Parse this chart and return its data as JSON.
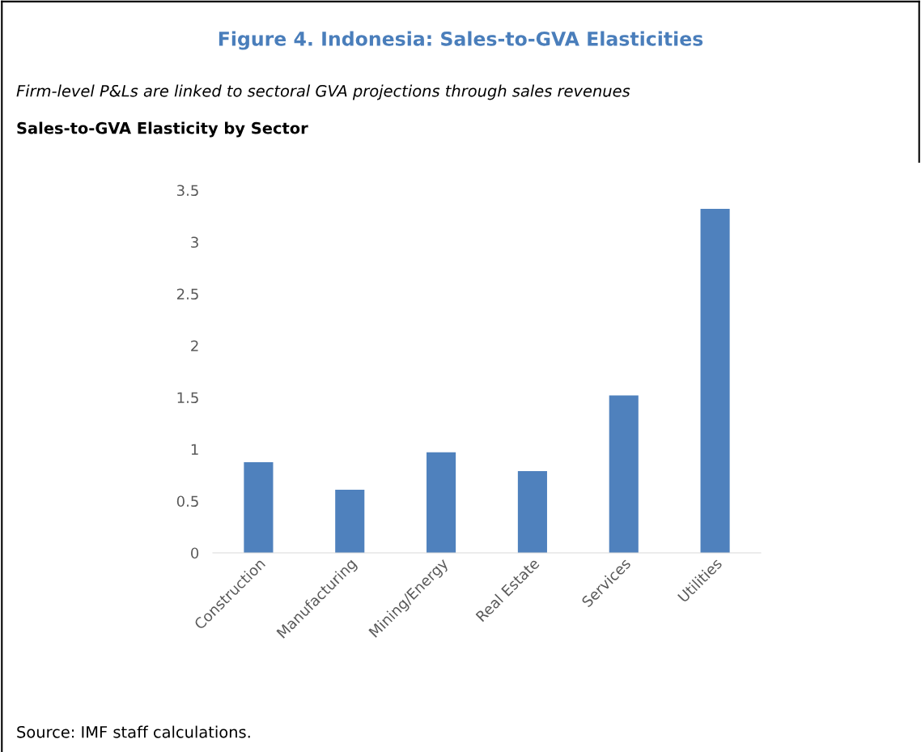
{
  "chart_data": {
    "type": "bar",
    "title": "Figure 4. Indonesia: Sales-to-GVA Elasticities",
    "subtitle": "Firm-level P&Ls are linked to sectoral GVA projections through sales revenues",
    "ylabel": "Sales-to-GVA Elasticity by Sector",
    "categories": [
      "Construction",
      "Manufacturing",
      "Mining/Energy",
      "Real Estate",
      "Services",
      "Utilities"
    ],
    "values": [
      0.875,
      0.61,
      0.97,
      0.79,
      1.52,
      3.32
    ],
    "color": "#4f81bd",
    "ylim": [
      0,
      3.5
    ],
    "yticks": [
      0,
      0.5,
      1,
      1.5,
      2,
      2.5,
      3,
      3.5
    ],
    "grid": false,
    "legend": false,
    "annotations": [
      "Source: IMF staff calculations."
    ]
  }
}
